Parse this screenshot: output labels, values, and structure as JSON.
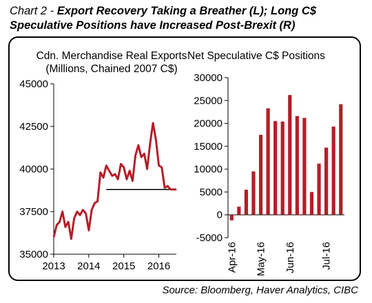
{
  "figure": {
    "title_prefix": "Chart 2 - ",
    "title": "Export Recovery Taking a Breather (L); Long C$ Speculative Positions have Increased Post-Brexit (R)",
    "source": "Source: Bloomberg, Haver Analytics, CIBC"
  },
  "chart_data": [
    {
      "type": "line",
      "title_line1": "Cdn. Merchandise Real Exports",
      "title_line2": "(Millions, Chained 2007 C$)",
      "xlabel": "",
      "ylabel": "",
      "x_ticks": [
        "2013",
        "2014",
        "2015",
        "2016"
      ],
      "xlim": [
        2013.0,
        2016.5
      ],
      "ylim": [
        35000,
        45000
      ],
      "y_ticks": [
        "45000",
        "42500",
        "40000",
        "37500",
        "35000"
      ],
      "y_tick_values": [
        45000,
        42500,
        40000,
        37500,
        35000
      ],
      "grid": false,
      "color": "#b41e28",
      "series": [
        {
          "x": [
            2013.0,
            2013.083,
            2013.167,
            2013.25,
            2013.333,
            2013.417,
            2013.5,
            2013.583,
            2013.667,
            2013.75,
            2013.833,
            2013.917,
            2014.0,
            2014.083,
            2014.167,
            2014.25,
            2014.333,
            2014.417,
            2014.5,
            2014.583,
            2014.667,
            2014.75,
            2014.833,
            2014.917,
            2015.0,
            2015.083,
            2015.167,
            2015.25,
            2015.333,
            2015.417,
            2015.5,
            2015.583,
            2015.667,
            2015.75,
            2015.833,
            2015.917,
            2016.0,
            2016.083,
            2016.167,
            2016.25,
            2016.333,
            2016.417,
            2016.5
          ],
          "y": [
            36000,
            36700,
            36900,
            37500,
            36600,
            36900,
            35900,
            37100,
            37500,
            37300,
            37600,
            37400,
            36400,
            37600,
            38000,
            38100,
            39800,
            39500,
            40200,
            39900,
            39600,
            39700,
            39400,
            40300,
            40100,
            39400,
            39900,
            39300,
            40800,
            41400,
            40700,
            40900,
            40000,
            41500,
            42700,
            41700,
            40200,
            40100,
            38900,
            39000,
            38800,
            38800,
            38800
          ]
        }
      ],
      "reference_line": {
        "value": 38800,
        "x_start": 2014.5,
        "x_end": 2016.5
      }
    },
    {
      "type": "bar",
      "title": "Net Speculative C$ Positions",
      "xlabel": "",
      "ylabel": "",
      "ylim": [
        -5000,
        30000
      ],
      "y_ticks": [
        "30000",
        "25000",
        "20000",
        "15000",
        "10000",
        "5000",
        "0",
        "-5000"
      ],
      "y_tick_values": [
        30000,
        25000,
        20000,
        15000,
        10000,
        5000,
        0,
        -5000
      ],
      "x_tick_labels": [
        "Apr-16",
        "May-16",
        "Jun-16",
        "Jul-16"
      ],
      "x_tick_bar_index": [
        0,
        4,
        8,
        13
      ],
      "grid": false,
      "color": "#b41e28",
      "values": [
        -1200,
        1800,
        5500,
        9500,
        17500,
        23300,
        20500,
        20400,
        26200,
        21600,
        21200,
        5000,
        11200,
        14700,
        19300,
        24200
      ]
    }
  ]
}
